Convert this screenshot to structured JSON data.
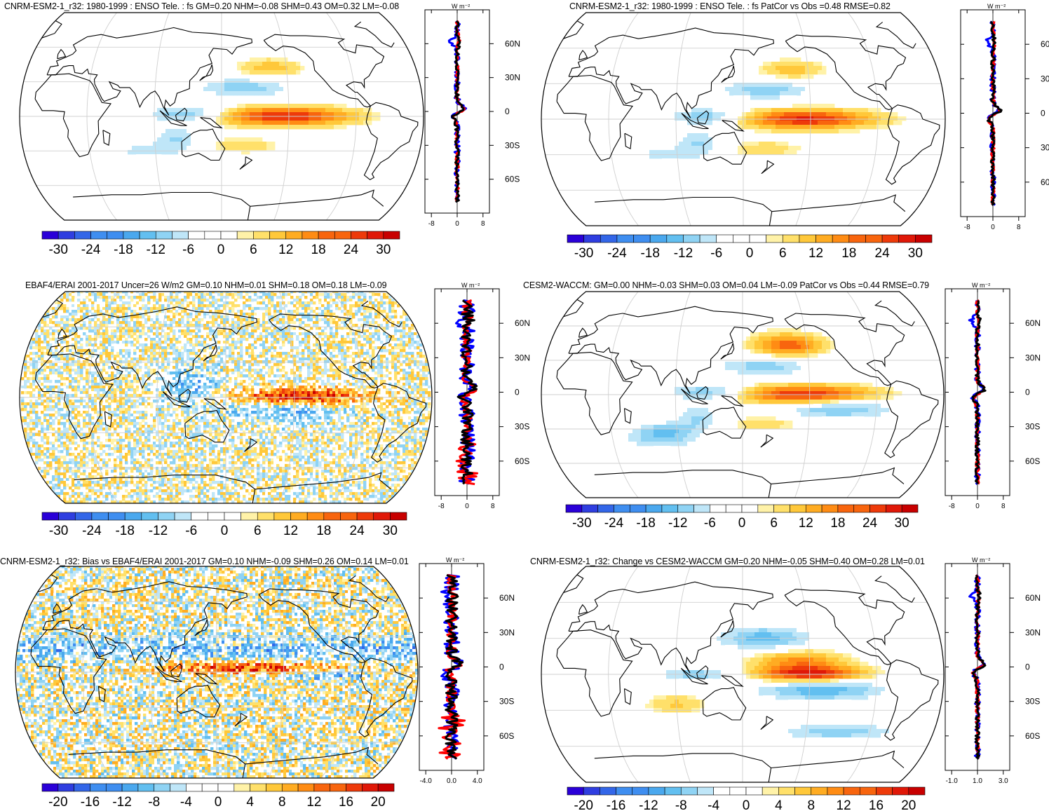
{
  "panels": [
    {
      "title": "CNRM-ESM2-1_r32: 1980-1999 : ENSO Tele. : fs GM=0.20 NHM=-0.08 SHM=0.43 OM=0.32 LM=-0.08",
      "colorbar_labels": [
        "-30",
        "-24",
        "-18",
        "-12",
        "-6",
        "0",
        "6",
        "12",
        "18",
        "24",
        "30"
      ],
      "lat_labels": [
        "60N",
        "30N",
        "0",
        "30S",
        "60S"
      ],
      "x_ticks": [
        "-8",
        "0",
        "8"
      ],
      "unit": "W m⁻²",
      "pattern": "enso"
    },
    {
      "title": "CNRM-ESM2-1_r32: 1980-1999 : ENSO Tele. : fs PatCor vs Obs =0.48 RMSE=0.82",
      "colorbar_labels": [
        "-30",
        "-24",
        "-18",
        "-12",
        "-6",
        "0",
        "6",
        "12",
        "18",
        "24",
        "30"
      ],
      "lat_labels": [
        "60",
        "30",
        "0",
        "30",
        "60"
      ],
      "x_ticks": [
        "-8",
        "0",
        "8"
      ],
      "unit": "W m⁻²",
      "pattern": "enso"
    },
    {
      "title": "EBAF4/ERAI 2001-2017 Uncer=26 W/m2 GM=0.10 NHM=0.01 SHM=0.18 OM=0.18 LM=-0.09",
      "colorbar_labels": [
        "-30",
        "-24",
        "-18",
        "-12",
        "-6",
        "0",
        "6",
        "12",
        "18",
        "24",
        "30"
      ],
      "lat_labels": [
        "60N",
        "30N",
        "0",
        "30S",
        "60S"
      ],
      "x_ticks": [
        "-8",
        "0",
        "8"
      ],
      "unit": "W m⁻²",
      "pattern": "obs"
    },
    {
      "title": "CESM2-WACCM: GM=0.00 NHM=-0.03 SHM=0.03 OM=0.04 LM=-0.09 PatCor vs Obs =0.44 RMSE=0.79",
      "colorbar_labels": [
        "-30",
        "-24",
        "-18",
        "-12",
        "-6",
        "0",
        "6",
        "12",
        "18",
        "24",
        "30"
      ],
      "lat_labels": [
        "60N",
        "30N",
        "0",
        "30S",
        "60S"
      ],
      "x_ticks": [
        "-8",
        "0",
        "8"
      ],
      "unit": "W m⁻²",
      "pattern": "waccm"
    },
    {
      "title": "CNRM-ESM2-1_r32: Bias vs EBAF4/ERAI 2001-2017 GM=0.10 NHM=-0.09 SHM=0.26 OM=0.14 LM=0.01",
      "colorbar_labels": [
        "-20",
        "-16",
        "-12",
        "-8",
        "-4",
        "0",
        "4",
        "8",
        "12",
        "16",
        "20"
      ],
      "lat_labels": [
        "60N",
        "30N",
        "0",
        "30S",
        "60S"
      ],
      "x_ticks": [
        "-4.0",
        "0.0",
        "4.0"
      ],
      "unit": "W m⁻²",
      "pattern": "bias"
    },
    {
      "title": "CNRM-ESM2-1_r32: Change vs CESM2-WACCM GM=0.20 NHM=-0.05 SHM=0.40 OM=0.28 LM=0.01",
      "colorbar_labels": [
        "-20",
        "-16",
        "-12",
        "-8",
        "-4",
        "0",
        "4",
        "8",
        "12",
        "16",
        "20"
      ],
      "lat_labels": [
        "60N",
        "30N",
        "0",
        "30S",
        "60S"
      ],
      "x_ticks": [
        "-1.0",
        "1.0",
        "3.0"
      ],
      "unit": "W m⁻²",
      "pattern": "change"
    }
  ],
  "colors": {
    "palette": [
      "#2a00d8",
      "#2f3ee0",
      "#3366e8",
      "#3f8ef0",
      "#4aa8ee",
      "#62bff0",
      "#8fd3f4",
      "#bfe6f8",
      "#ffffff",
      "#ffffff",
      "#fff2a8",
      "#ffe06a",
      "#ffc83a",
      "#ffac22",
      "#ff8c14",
      "#f8650e",
      "#ee3a0a",
      "#e01808",
      "#c80000"
    ],
    "series": [
      "#0000ff",
      "#ff0000",
      "#000000"
    ]
  }
}
